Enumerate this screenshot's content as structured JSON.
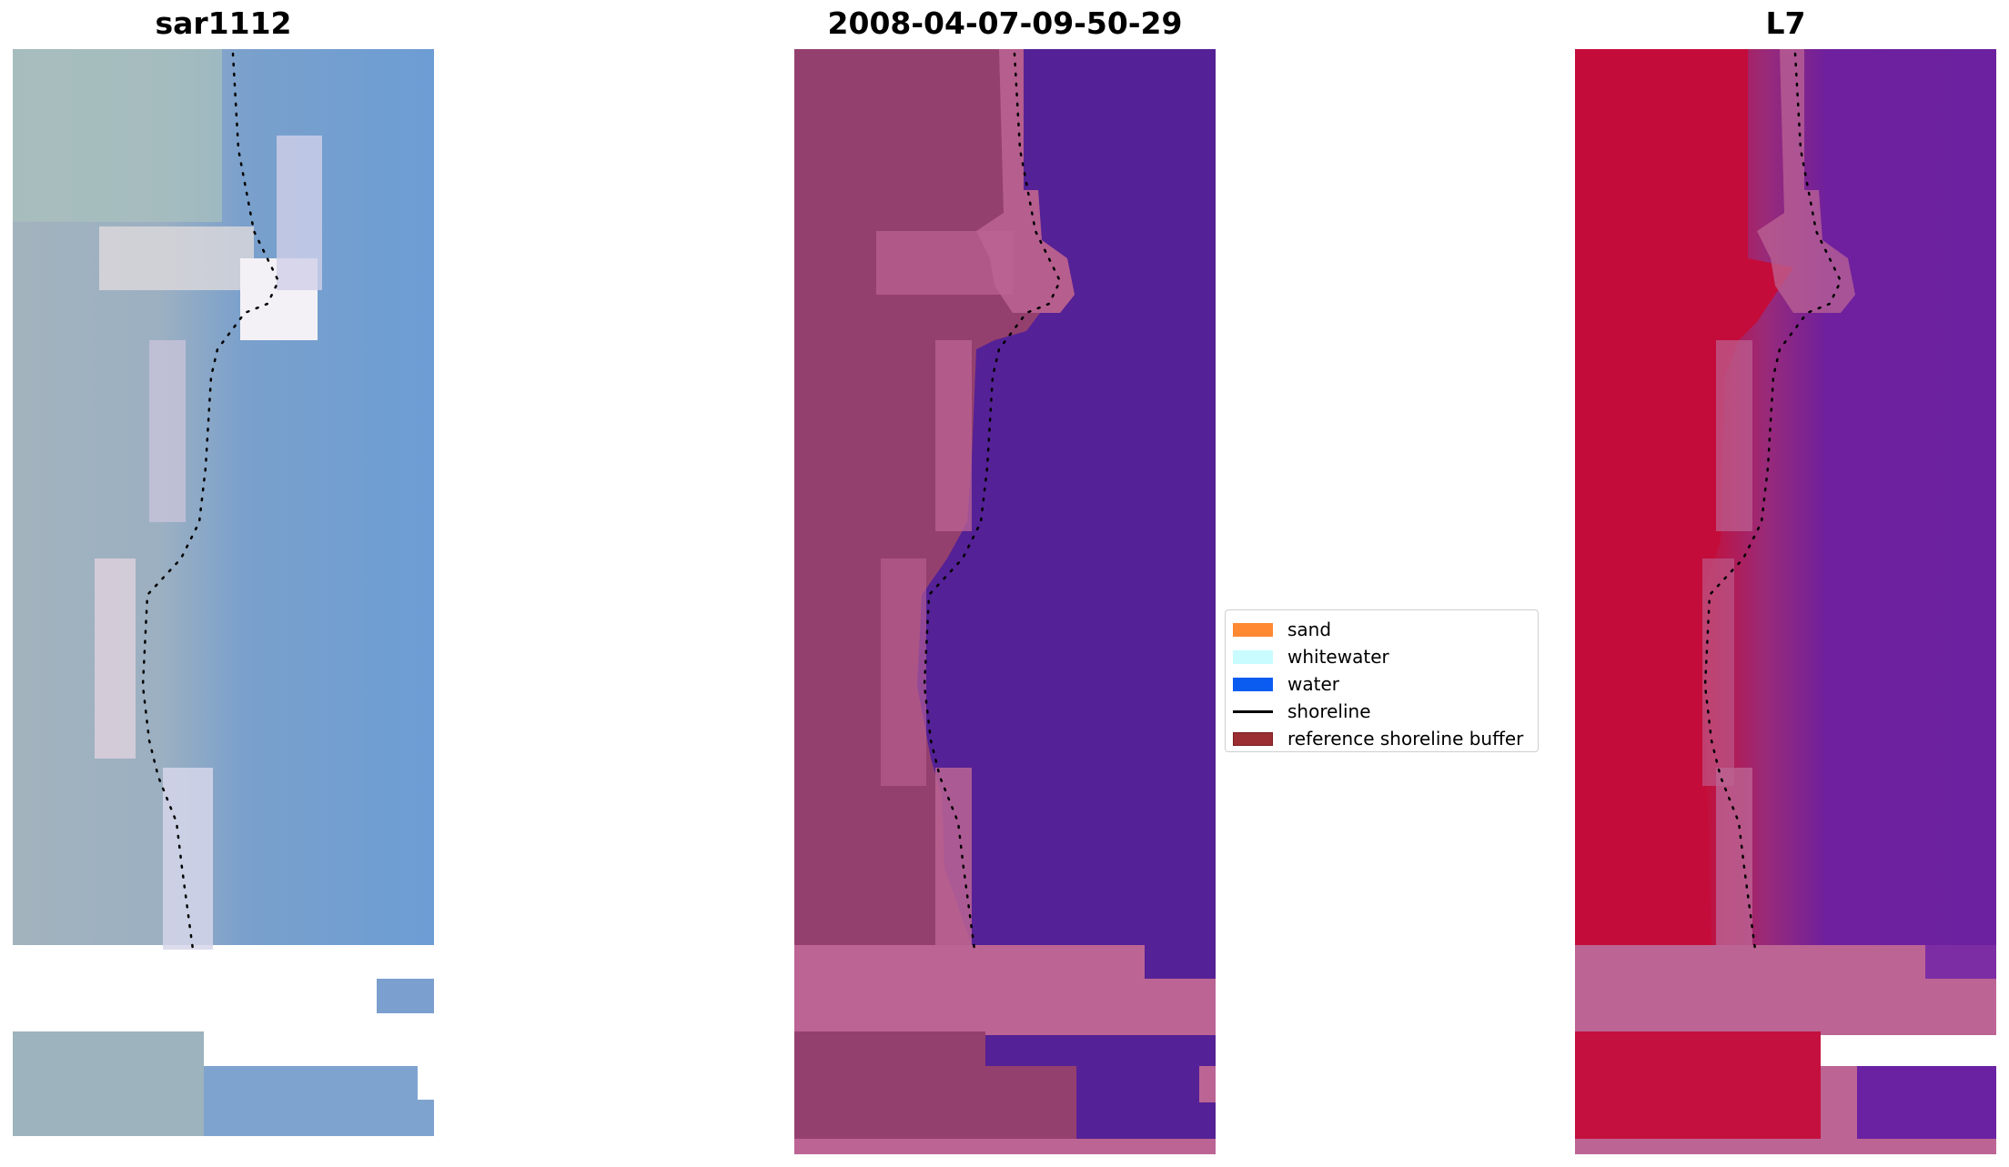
{
  "panels": [
    {
      "title": "sar1112"
    },
    {
      "title": "2008-04-07-09-50-29"
    },
    {
      "title": "L7"
    }
  ],
  "legend": {
    "items": [
      {
        "label": "sand",
        "color": "#ff8833",
        "kind": "patch"
      },
      {
        "label": "whitewater",
        "color": "#c8fcff",
        "kind": "patch"
      },
      {
        "label": "water",
        "color": "#0a5cf0",
        "kind": "patch"
      },
      {
        "label": "shoreline",
        "color": "#000000",
        "kind": "line"
      },
      {
        "label": "reference shoreline buffer",
        "color": "#9b2e33",
        "kind": "patch",
        "edge": "#7a1e22"
      }
    ]
  },
  "colors": {
    "rgb_land": "#a6b6c0",
    "rgb_water": "#6e9bd0",
    "class_land": "#94406f",
    "class_water": "#552196",
    "class_buffer": "#bc6494",
    "ndwi_land": "#c00c3a",
    "ndwi_water": "#6b21a0",
    "shoreline_dots": "#000000"
  }
}
